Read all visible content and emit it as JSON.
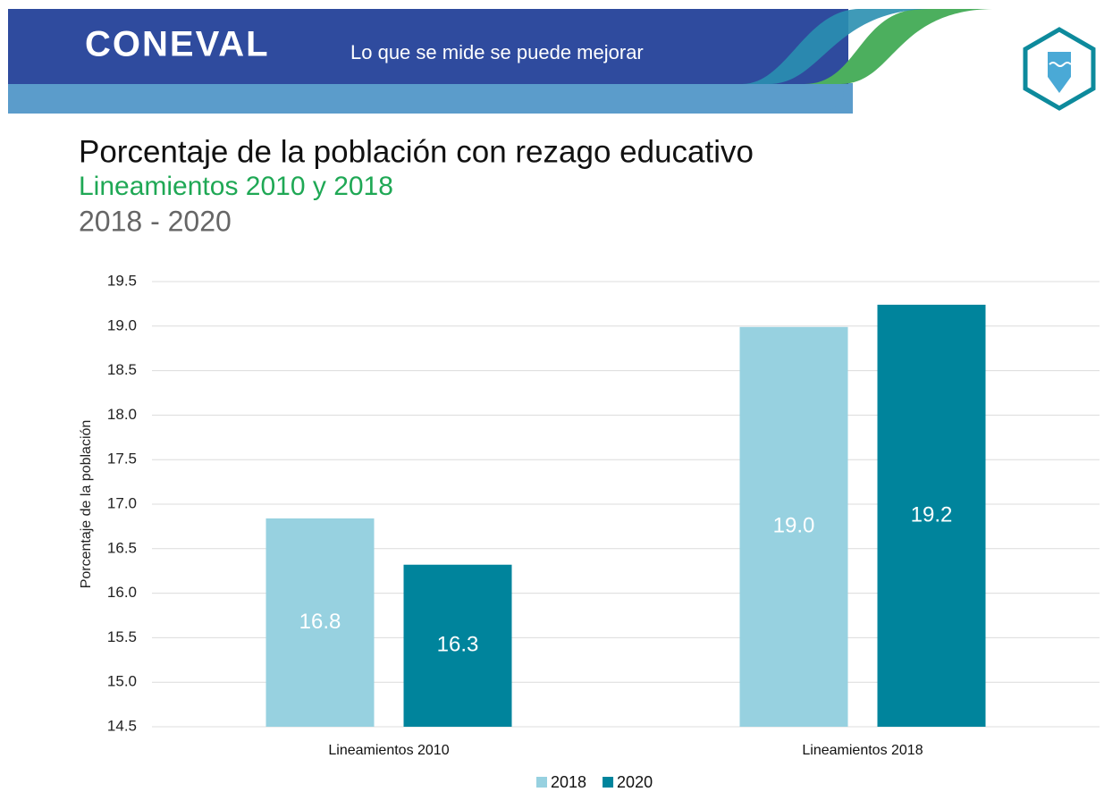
{
  "header": {
    "logo": "CONEVAL",
    "tagline": "Lo que se mide se puede mejorar"
  },
  "chart_data": {
    "type": "bar",
    "title": "Porcentaje de la población con rezago educativo",
    "subtitle": "Lineamientos 2010 y 2018",
    "period": "2018 - 2020",
    "ylabel": "Porcentaje de la población",
    "categories": [
      "Lineamientos 2010",
      "Lineamientos 2018"
    ],
    "series": [
      {
        "name": "2018",
        "color": "#97d1e0",
        "values": [
          16.84,
          18.99
        ],
        "value_labels": [
          "16.8",
          "19.0"
        ]
      },
      {
        "name": "2020",
        "color": "#00849c",
        "values": [
          16.32,
          19.24
        ],
        "value_labels": [
          "16.3",
          "19.2"
        ]
      }
    ],
    "ylim": [
      14.5,
      19.5
    ],
    "yticks": [
      14.5,
      {
        "value": 15,
        "label": "15.0"
      },
      15.5,
      {
        "value": 16,
        "label": "16.0"
      },
      16.5,
      {
        "value": 17,
        "label": "17.0"
      },
      17.5,
      {
        "value": 18,
        "label": "18.0"
      },
      18.5,
      {
        "value": 19,
        "label": "19.0"
      },
      19.5
    ],
    "grid": true,
    "legend": "bottom"
  }
}
